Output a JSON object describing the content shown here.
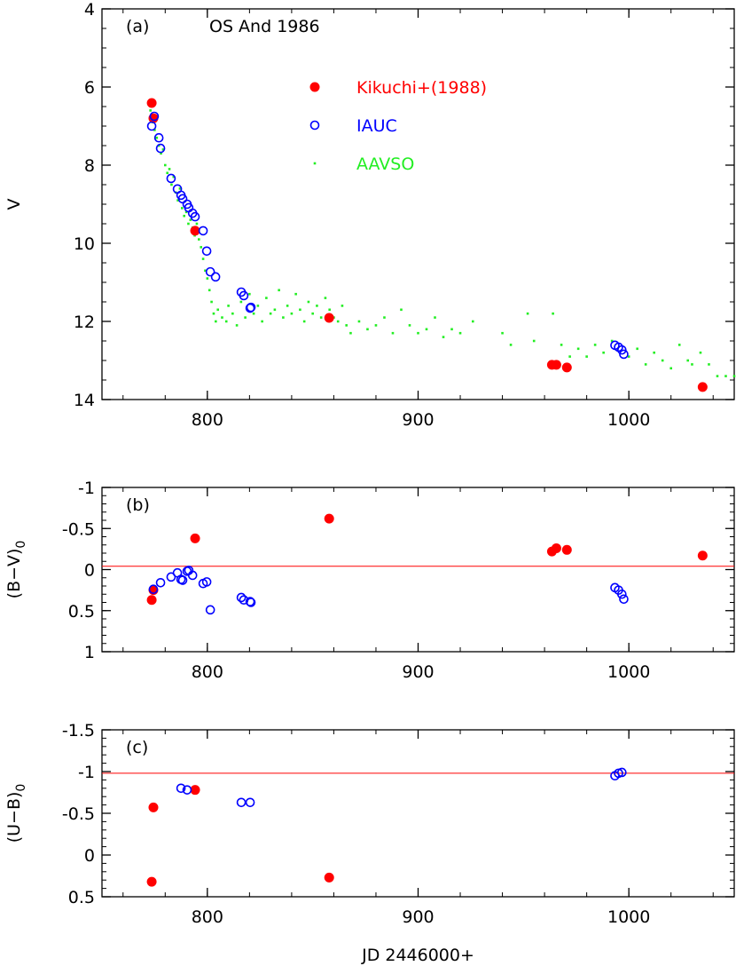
{
  "chart_data": [
    {
      "type": "scatter",
      "panel_label": "(a)",
      "title": "OS And 1986",
      "y_label": "V",
      "xlim": [
        750,
        1050
      ],
      "xticks": [
        800,
        900,
        1000
      ],
      "ylim": [
        4,
        14
      ],
      "yticks": [
        4,
        6,
        8,
        10,
        12,
        14
      ],
      "y_inverted": true,
      "legend": "upper center",
      "series": [
        {
          "name": "Kikuchi+(1988)",
          "color": "#ff0000",
          "marker": "filled",
          "x": [
            773.6,
            774.4,
            794.2,
            857.8,
            963.5,
            965.6,
            970.6,
            1035
          ],
          "values": [
            6.41,
            6.8,
            9.68,
            11.91,
            13.11,
            13.11,
            13.18,
            13.68
          ]
        },
        {
          "name": "IAUC",
          "color": "#0000ff",
          "marker": "open",
          "x": [
            773.6,
            774.8,
            777,
            777.8,
            782.8,
            785.8,
            787.5,
            788.3,
            790.4,
            791.2,
            793,
            794.2,
            798,
            799.7,
            801.4,
            803.9,
            816.1,
            817.3,
            820.3,
            820.7,
            993.4,
            995.1,
            996.7,
            997.6
          ],
          "values": [
            7.0,
            6.75,
            7.3,
            7.57,
            8.34,
            8.61,
            8.77,
            8.86,
            9.0,
            9.09,
            9.23,
            9.32,
            9.68,
            10.2,
            10.73,
            10.86,
            11.25,
            11.34,
            11.66,
            11.64,
            12.61,
            12.66,
            12.73,
            12.84
          ]
        },
        {
          "name": "AAVSO",
          "color": "#22ee22",
          "marker": "dot",
          "x": [
            773,
            774,
            775,
            776,
            777,
            778,
            779,
            780,
            781,
            782,
            783,
            784,
            785,
            786,
            787,
            788,
            789,
            790,
            791,
            792,
            793,
            794,
            795,
            796,
            797,
            798,
            799,
            800,
            801,
            802,
            803,
            804,
            805,
            807,
            809,
            810,
            812,
            814,
            816,
            818,
            820,
            822,
            824,
            826,
            828,
            830,
            832,
            834,
            836,
            838,
            840,
            842,
            844,
            846,
            848,
            850,
            852,
            854,
            856,
            858,
            860,
            862,
            864,
            866,
            868,
            872,
            876,
            880,
            884,
            888,
            892,
            896,
            900,
            904,
            908,
            912,
            916,
            920,
            926,
            940,
            944,
            952,
            955,
            964,
            968,
            972,
            976,
            980,
            984,
            988,
            992,
            1000,
            1004,
            1008,
            1012,
            1016,
            1020,
            1024,
            1028,
            1030,
            1034,
            1038,
            1042,
            1046,
            1050
          ],
          "values": [
            6.6,
            6.9,
            7.1,
            7.3,
            7.5,
            7.7,
            7.6,
            8.0,
            8.2,
            8.1,
            8.5,
            8.3,
            8.7,
            8.9,
            8.6,
            9.1,
            9.3,
            9.2,
            9.5,
            9.4,
            9.6,
            9.8,
            9.5,
            9.9,
            10.1,
            10.4,
            10.7,
            10.9,
            11.2,
            11.5,
            11.8,
            12.0,
            11.7,
            11.9,
            12.0,
            11.6,
            11.8,
            12.1,
            11.5,
            11.9,
            11.3,
            11.8,
            11.6,
            12.0,
            11.4,
            11.8,
            11.7,
            11.2,
            11.9,
            11.6,
            11.8,
            11.3,
            11.7,
            12.0,
            11.5,
            11.8,
            11.6,
            11.9,
            11.4,
            11.7,
            11.9,
            12.0,
            11.6,
            12.1,
            12.3,
            12.0,
            12.2,
            12.1,
            11.9,
            12.3,
            11.7,
            12.1,
            12.3,
            12.2,
            11.9,
            12.4,
            12.2,
            12.3,
            12.0,
            12.3,
            12.6,
            11.8,
            12.5,
            11.8,
            12.6,
            12.9,
            12.7,
            12.9,
            12.6,
            12.8,
            12.5,
            12.9,
            12.7,
            13.1,
            12.8,
            13.0,
            13.2,
            12.6,
            13.0,
            13.1,
            12.8,
            13.1,
            13.4,
            13.4,
            13.4
          ]
        }
      ]
    },
    {
      "type": "scatter",
      "panel_label": "(b)",
      "y_label": "(B−V)",
      "y_label_subscript": "0",
      "xlim": [
        750,
        1050
      ],
      "xticks": [
        800,
        900,
        1000
      ],
      "ylim": [
        -1,
        1
      ],
      "yticks": [
        -1,
        -0.5,
        0,
        0.5,
        1
      ],
      "y_inverted": true,
      "reference_line": {
        "value": -0.04,
        "color": "#ff0000"
      },
      "series": [
        {
          "color": "#ff0000",
          "marker": "filled",
          "x": [
            773.6,
            774.4,
            794.2,
            857.8,
            963.5,
            965.6,
            970.6,
            1035
          ],
          "values": [
            0.37,
            0.25,
            -0.38,
            -0.62,
            -0.22,
            -0.26,
            -0.24,
            -0.17
          ]
        },
        {
          "color": "#0000ff",
          "marker": "open",
          "x": [
            774.4,
            777.8,
            782.8,
            785.8,
            787.5,
            788.3,
            790.4,
            791.2,
            793,
            798,
            799.7,
            801.4,
            816.1,
            817.3,
            820.3,
            820.7,
            993.4,
            995.1,
            996.7,
            997.6
          ],
          "values": [
            0.24,
            0.16,
            0.09,
            0.04,
            0.12,
            0.13,
            0.02,
            0.01,
            0.07,
            0.17,
            0.15,
            0.49,
            0.34,
            0.37,
            0.39,
            0.4,
            0.22,
            0.25,
            0.3,
            0.36
          ]
        }
      ]
    },
    {
      "type": "scatter",
      "panel_label": "(c)",
      "y_label": "(U−B)",
      "y_label_subscript": "0",
      "x_label": "JD 2446000+",
      "xlim": [
        750,
        1050
      ],
      "xticks": [
        800,
        900,
        1000
      ],
      "ylim": [
        -1.5,
        0.5
      ],
      "yticks": [
        -1.5,
        -1,
        -0.5,
        0,
        0.5
      ],
      "y_inverted": true,
      "reference_line": {
        "value": -0.98,
        "color": "#ff0000"
      },
      "series": [
        {
          "color": "#ff0000",
          "marker": "filled",
          "x": [
            773.6,
            774.4,
            794.2,
            857.8
          ],
          "values": [
            0.32,
            -0.57,
            -0.78,
            0.27
          ]
        },
        {
          "color": "#0000ff",
          "marker": "open",
          "x": [
            787.5,
            790.4,
            816.1,
            820.3,
            993.4,
            995.1,
            996.7
          ],
          "values": [
            -0.8,
            -0.78,
            -0.63,
            -0.63,
            -0.95,
            -0.98,
            -0.99
          ]
        }
      ]
    }
  ]
}
